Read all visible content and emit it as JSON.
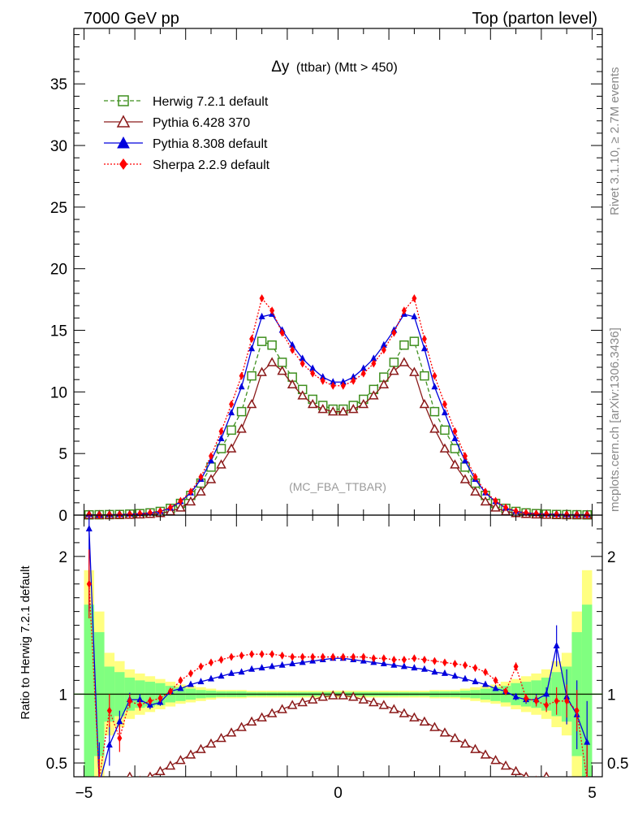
{
  "header": {
    "left": "7000 GeV pp",
    "right": "Top (parton level)"
  },
  "side_labels": {
    "rivet": "Rivet 3.1.10, ≥ 2.7M events",
    "mcplots": "mcplots.cern.ch [arXiv:1306.3436]"
  },
  "chart_data": [
    {
      "type": "line",
      "title_main": "Δy",
      "title_rest": "(ttbar) (Mtt > 450)",
      "watermark": "(MC_FBA_TTBAR)",
      "xlim": [
        -5.2,
        5.2
      ],
      "ylim": [
        0,
        39.5
      ],
      "yticks": [
        0,
        5,
        10,
        15,
        20,
        25,
        30,
        35
      ],
      "ytick_labels": [
        "0",
        "5",
        "10",
        "15",
        "20",
        "25",
        "30",
        "35"
      ],
      "x": [
        -4.9,
        -4.7,
        -4.5,
        -4.3,
        -4.1,
        -3.9,
        -3.7,
        -3.5,
        -3.3,
        -3.1,
        -2.9,
        -2.7,
        -2.5,
        -2.3,
        -2.1,
        -1.9,
        -1.7,
        -1.5,
        -1.3,
        -1.1,
        -0.9,
        -0.7,
        -0.5,
        -0.3,
        -0.1,
        0.1,
        0.3,
        0.5,
        0.7,
        0.9,
        1.1,
        1.3,
        1.5,
        1.7,
        1.9,
        2.1,
        2.3,
        2.5,
        2.7,
        2.9,
        3.1,
        3.3,
        3.5,
        3.7,
        3.9,
        4.1,
        4.3,
        4.5,
        4.7,
        4.9
      ],
      "series": [
        {
          "name": "Herwig 7.2.1 default",
          "color": "#3f8f1f",
          "dash": "5,3",
          "marker": "open-square",
          "values": [
            0.02,
            0.03,
            0.04,
            0.05,
            0.08,
            0.12,
            0.18,
            0.3,
            0.55,
            0.95,
            1.6,
            2.6,
            3.9,
            5.4,
            6.9,
            8.4,
            11.3,
            14.1,
            13.8,
            12.4,
            11.2,
            10.2,
            9.4,
            8.9,
            8.6,
            8.6,
            8.9,
            9.4,
            10.2,
            11.2,
            12.4,
            13.8,
            14.1,
            11.3,
            8.4,
            6.9,
            5.4,
            3.9,
            2.6,
            1.6,
            0.95,
            0.55,
            0.3,
            0.18,
            0.12,
            0.08,
            0.05,
            0.04,
            0.03,
            0.02
          ]
        },
        {
          "name": "Pythia 6.428 370",
          "color": "#8b1a1a",
          "dash": "",
          "marker": "open-triangle",
          "values": [
            0.0,
            0.0,
            0.0,
            0.01,
            0.02,
            0.04,
            0.08,
            0.15,
            0.3,
            0.6,
            1.1,
            1.9,
            2.9,
            4.1,
            5.4,
            7.0,
            9.0,
            11.6,
            12.4,
            11.7,
            10.6,
            9.7,
            9.0,
            8.6,
            8.4,
            8.4,
            8.6,
            9.0,
            9.7,
            10.6,
            11.7,
            12.4,
            11.6,
            9.0,
            7.0,
            5.4,
            4.1,
            2.9,
            1.9,
            1.1,
            0.6,
            0.3,
            0.15,
            0.08,
            0.04,
            0.02,
            0.01,
            0.0,
            0.0,
            0.0
          ]
        },
        {
          "name": "Pythia 8.308 default",
          "color": "#0000dd",
          "dash": "",
          "marker": "filled-triangle",
          "values": [
            0.05,
            0.0,
            0.03,
            0.05,
            0.08,
            0.12,
            0.18,
            0.3,
            0.58,
            1.1,
            1.8,
            2.9,
            4.4,
            6.2,
            8.3,
            10.4,
            13.5,
            16.1,
            16.3,
            15.0,
            13.8,
            12.7,
            11.9,
            11.2,
            10.8,
            10.8,
            11.2,
            11.9,
            12.7,
            13.8,
            15.0,
            16.3,
            16.1,
            13.5,
            10.4,
            8.3,
            6.2,
            4.4,
            2.9,
            1.8,
            1.1,
            0.58,
            0.3,
            0.18,
            0.12,
            0.09,
            0.07,
            0.04,
            0.03,
            0.03
          ]
        },
        {
          "name": "Sherpa 2.2.9 default",
          "color": "#ff0000",
          "dash": "2,2",
          "marker": "filled-diamond",
          "values": [
            0.03,
            0.01,
            0.03,
            0.04,
            0.07,
            0.12,
            0.19,
            0.33,
            0.62,
            1.15,
            1.9,
            3.1,
            4.8,
            6.8,
            9.0,
            11.3,
            14.3,
            17.6,
            16.6,
            14.8,
            13.4,
            12.3,
            11.5,
            10.9,
            10.5,
            10.5,
            10.9,
            11.5,
            12.3,
            13.4,
            14.8,
            16.6,
            17.6,
            14.3,
            11.3,
            9.0,
            6.8,
            4.8,
            3.1,
            1.9,
            1.15,
            0.62,
            0.33,
            0.19,
            0.12,
            0.08,
            0.05,
            0.04,
            0.02,
            0.02
          ]
        }
      ]
    },
    {
      "type": "line",
      "ylabel": "Ratio to Herwig 7.2.1 default",
      "xlim": [
        -5.2,
        5.2
      ],
      "ylim": [
        0.4,
        2.3
      ],
      "xticks": [
        -5,
        0,
        5
      ],
      "xtick_labels": [
        "−5",
        "0",
        "5"
      ],
      "yticks": [
        0.5,
        1,
        2
      ],
      "ytick_labels": [
        "0.5",
        "1",
        "2"
      ],
      "x": [
        -4.9,
        -4.7,
        -4.5,
        -4.3,
        -4.1,
        -3.9,
        -3.7,
        -3.5,
        -3.3,
        -3.1,
        -2.9,
        -2.7,
        -2.5,
        -2.3,
        -2.1,
        -1.9,
        -1.7,
        -1.5,
        -1.3,
        -1.1,
        -0.9,
        -0.7,
        -0.5,
        -0.3,
        -0.1,
        0.1,
        0.3,
        0.5,
        0.7,
        0.9,
        1.1,
        1.3,
        1.5,
        1.7,
        1.9,
        2.1,
        2.3,
        2.5,
        2.7,
        2.9,
        3.1,
        3.3,
        3.5,
        3.7,
        3.9,
        4.1,
        4.3,
        4.5,
        4.7,
        4.9
      ],
      "band_stat": [
        0.65,
        0.45,
        0.2,
        0.16,
        0.12,
        0.1,
        0.09,
        0.08,
        0.06,
        0.05,
        0.04,
        0.03,
        0.025,
        0.02,
        0.02,
        0.02,
        0.015,
        0.015,
        0.015,
        0.015,
        0.015,
        0.015,
        0.015,
        0.015,
        0.015,
        0.015,
        0.015,
        0.015,
        0.015,
        0.015,
        0.015,
        0.015,
        0.015,
        0.015,
        0.02,
        0.02,
        0.02,
        0.025,
        0.03,
        0.04,
        0.05,
        0.06,
        0.08,
        0.09,
        0.1,
        0.12,
        0.16,
        0.2,
        0.45,
        0.65
      ],
      "band_total": [
        0.9,
        0.6,
        0.3,
        0.24,
        0.18,
        0.15,
        0.13,
        0.11,
        0.09,
        0.07,
        0.06,
        0.05,
        0.04,
        0.03,
        0.03,
        0.03,
        0.025,
        0.025,
        0.025,
        0.025,
        0.025,
        0.025,
        0.025,
        0.025,
        0.025,
        0.025,
        0.025,
        0.025,
        0.025,
        0.025,
        0.025,
        0.025,
        0.025,
        0.025,
        0.03,
        0.03,
        0.03,
        0.04,
        0.05,
        0.06,
        0.07,
        0.09,
        0.11,
        0.13,
        0.15,
        0.18,
        0.24,
        0.3,
        0.6,
        0.9
      ],
      "series": [
        {
          "name": "Herwig 7.2.1 default",
          "color": "#3f8f1f",
          "dash": "",
          "marker": "none",
          "values": [
            1,
            1,
            1,
            1,
            1,
            1,
            1,
            1,
            1,
            1,
            1,
            1,
            1,
            1,
            1,
            1,
            1,
            1,
            1,
            1,
            1,
            1,
            1,
            1,
            1,
            1,
            1,
            1,
            1,
            1,
            1,
            1,
            1,
            1,
            1,
            1,
            1,
            1,
            1,
            1,
            1,
            1,
            1,
            1,
            1,
            1,
            1,
            1,
            1,
            1
          ]
        },
        {
          "name": "Pythia 6.428 370",
          "color": "#8b1a1a",
          "dash": "",
          "marker": "open-triangle",
          "values": [
            null,
            null,
            null,
            null,
            0.4,
            0.37,
            0.4,
            0.44,
            0.48,
            0.52,
            0.56,
            0.6,
            0.64,
            0.68,
            0.72,
            0.76,
            0.8,
            0.83,
            0.86,
            0.89,
            0.92,
            0.94,
            0.96,
            0.98,
            0.99,
            0.99,
            0.98,
            0.96,
            0.94,
            0.92,
            0.89,
            0.86,
            0.83,
            0.8,
            0.76,
            0.72,
            0.68,
            0.64,
            0.6,
            0.56,
            0.52,
            0.48,
            0.44,
            0.4,
            0.37,
            0.4,
            null,
            null,
            null,
            null
          ],
          "errors": [
            0,
            0,
            0,
            0,
            0.03,
            0.03,
            0,
            0,
            0,
            0,
            0,
            0,
            0,
            0,
            0,
            0,
            0,
            0,
            0,
            0,
            0,
            0,
            0,
            0,
            0,
            0,
            0,
            0,
            0,
            0,
            0,
            0,
            0,
            0,
            0,
            0,
            0,
            0,
            0,
            0,
            0,
            0,
            0,
            0,
            0.03,
            0.03,
            0,
            0,
            0,
            0
          ]
        },
        {
          "name": "Pythia 8.308 default",
          "color": "#0000dd",
          "dash": "",
          "marker": "filled-triangle",
          "values": [
            2.2,
            0.35,
            0.63,
            0.8,
            0.96,
            0.96,
            0.92,
            0.94,
            1.02,
            1.04,
            1.07,
            1.09,
            1.11,
            1.13,
            1.15,
            1.16,
            1.18,
            1.19,
            1.2,
            1.21,
            1.22,
            1.23,
            1.24,
            1.25,
            1.26,
            1.26,
            1.25,
            1.24,
            1.23,
            1.22,
            1.21,
            1.2,
            1.19,
            1.18,
            1.16,
            1.15,
            1.13,
            1.11,
            1.09,
            1.07,
            1.04,
            1.02,
            0.98,
            0.96,
            0.96,
            1.0,
            1.35,
            0.98,
            0.85,
            0.65
          ],
          "errors": [
            0.6,
            0.3,
            0.15,
            0.08,
            0.05,
            0.04,
            0.03,
            0.025,
            0.02,
            0.015,
            0,
            0,
            0,
            0,
            0,
            0,
            0,
            0,
            0,
            0,
            0,
            0,
            0,
            0,
            0,
            0,
            0,
            0,
            0,
            0,
            0,
            0,
            0,
            0,
            0,
            0,
            0,
            0,
            0,
            0,
            0.015,
            0.02,
            0.025,
            0.03,
            0.04,
            0.05,
            0.15,
            0.2,
            0.25,
            0.3
          ]
        },
        {
          "name": "Sherpa 2.2.9 default",
          "color": "#ff0000",
          "dash": "2,2",
          "marker": "filled-diamond",
          "values": [
            1.8,
            0.38,
            0.88,
            0.68,
            0.95,
            0.92,
            0.95,
            0.97,
            1.02,
            1.1,
            1.15,
            1.2,
            1.23,
            1.25,
            1.27,
            1.28,
            1.29,
            1.29,
            1.29,
            1.28,
            1.27,
            1.27,
            1.27,
            1.27,
            1.27,
            1.27,
            1.27,
            1.27,
            1.26,
            1.26,
            1.25,
            1.25,
            1.26,
            1.25,
            1.24,
            1.23,
            1.22,
            1.21,
            1.19,
            1.16,
            1.1,
            1.02,
            1.2,
            0.97,
            0.95,
            0.92,
            0.95,
            0.95,
            0.88,
            0.38
          ],
          "errors": [
            0.25,
            0.15,
            0.12,
            0.1,
            0.05,
            0.04,
            0.03,
            0.03,
            0.02,
            0.02,
            0,
            0,
            0,
            0,
            0,
            0,
            0,
            0,
            0,
            0,
            0,
            0,
            0,
            0,
            0,
            0,
            0,
            0,
            0,
            0,
            0,
            0,
            0,
            0,
            0,
            0,
            0,
            0,
            0,
            0.02,
            0.02,
            0.02,
            0.03,
            0.03,
            0.04,
            0.05,
            0.1,
            0.12,
            0.15,
            0.25
          ]
        }
      ]
    }
  ]
}
